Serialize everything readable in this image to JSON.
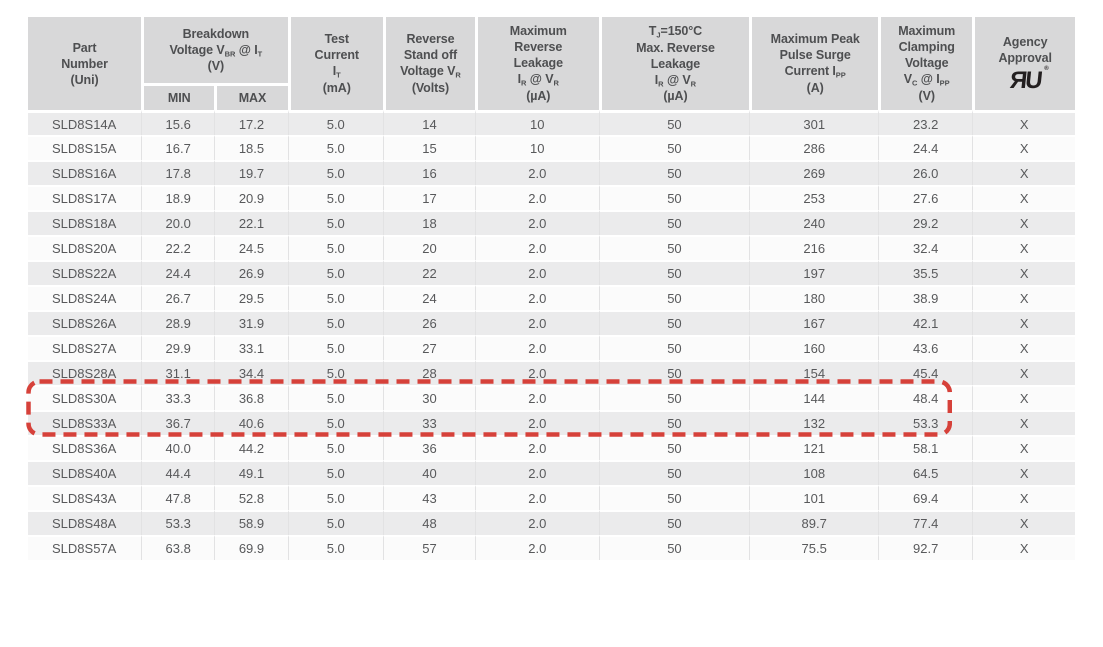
{
  "accent_colors": {
    "highlight_box": "#d6413a",
    "header_bg": "#d8d8d9",
    "stripe_bg": "#ebebec",
    "header_text": "#4e4f51",
    "body_text": "#58595b"
  },
  "agency_logo": {
    "glyph": "ЯU",
    "reg_mark": "®",
    "name": "ul-recognized-component-mark"
  },
  "table": {
    "columns": [
      {
        "id": "part-number",
        "lines": [
          "Part",
          "Number",
          "(Uni)"
        ]
      },
      {
        "id": "breakdown-voltage",
        "lines": [
          "Breakdown",
          "Voltage V~BR~ @ I~T~",
          "(V)"
        ],
        "split": true
      },
      {
        "id": "test-current",
        "lines": [
          "Test",
          "Current",
          "I~T~",
          "(mA)"
        ]
      },
      {
        "id": "reverse-standoff-voltage",
        "lines": [
          "Reverse",
          "Stand off",
          "Voltage V~R~",
          "(Volts)"
        ]
      },
      {
        "id": "max-reverse-leakage",
        "lines": [
          "Maximum",
          "Reverse",
          "Leakage",
          "I~R~ @ V~R~",
          "(µA)"
        ]
      },
      {
        "id": "tj150-max-reverse-leakage",
        "lines": [
          "T~J~=150°C",
          "Max. Reverse",
          "Leakage",
          "I~R~ @ V~R~",
          "(µA)"
        ]
      },
      {
        "id": "max-peak-pulse-surge-current",
        "lines": [
          "Maximum Peak",
          "Pulse Surge",
          "Current I~PP~",
          "(A)"
        ]
      },
      {
        "id": "max-clamping-voltage",
        "lines": [
          "Maximum",
          "Clamping",
          "Voltage",
          "V~C~ @ I~PP~",
          "(V)"
        ]
      },
      {
        "id": "agency-approval",
        "lines": [
          "Agency",
          "Approval"
        ],
        "logo": true
      }
    ],
    "column_widths_pct": [
      10.8,
      7.0,
      7.0,
      9.1,
      8.8,
      11.8,
      14.4,
      12.3,
      9.0,
      9.8
    ],
    "sub_headers": [
      "MIN",
      "MAX"
    ],
    "rows": [
      {
        "cells": [
          "SLD8S14A",
          "15.6",
          "17.2",
          "5.0",
          "14",
          "10",
          "50",
          "301",
          "23.2",
          "X"
        ],
        "highlight": false
      },
      {
        "cells": [
          "SLD8S15A",
          "16.7",
          "18.5",
          "5.0",
          "15",
          "10",
          "50",
          "286",
          "24.4",
          "X"
        ],
        "highlight": false
      },
      {
        "cells": [
          "SLD8S16A",
          "17.8",
          "19.7",
          "5.0",
          "16",
          "2.0",
          "50",
          "269",
          "26.0",
          "X"
        ],
        "highlight": false
      },
      {
        "cells": [
          "SLD8S17A",
          "18.9",
          "20.9",
          "5.0",
          "17",
          "2.0",
          "50",
          "253",
          "27.6",
          "X"
        ],
        "highlight": false
      },
      {
        "cells": [
          "SLD8S18A",
          "20.0",
          "22.1",
          "5.0",
          "18",
          "2.0",
          "50",
          "240",
          "29.2",
          "X"
        ],
        "highlight": false
      },
      {
        "cells": [
          "SLD8S20A",
          "22.2",
          "24.5",
          "5.0",
          "20",
          "2.0",
          "50",
          "216",
          "32.4",
          "X"
        ],
        "highlight": false
      },
      {
        "cells": [
          "SLD8S22A",
          "24.4",
          "26.9",
          "5.0",
          "22",
          "2.0",
          "50",
          "197",
          "35.5",
          "X"
        ],
        "highlight": false
      },
      {
        "cells": [
          "SLD8S24A",
          "26.7",
          "29.5",
          "5.0",
          "24",
          "2.0",
          "50",
          "180",
          "38.9",
          "X"
        ],
        "highlight": false
      },
      {
        "cells": [
          "SLD8S26A",
          "28.9",
          "31.9",
          "5.0",
          "26",
          "2.0",
          "50",
          "167",
          "42.1",
          "X"
        ],
        "highlight": false
      },
      {
        "cells": [
          "SLD8S27A",
          "29.9",
          "33.1",
          "5.0",
          "27",
          "2.0",
          "50",
          "160",
          "43.6",
          "X"
        ],
        "highlight": false
      },
      {
        "cells": [
          "SLD8S28A",
          "31.1",
          "34.4",
          "5.0",
          "28",
          "2.0",
          "50",
          "154",
          "45.4",
          "X"
        ],
        "highlight": false
      },
      {
        "cells": [
          "SLD8S30A",
          "33.3",
          "36.8",
          "5.0",
          "30",
          "2.0",
          "50",
          "144",
          "48.4",
          "X"
        ],
        "highlight": true
      },
      {
        "cells": [
          "SLD8S33A",
          "36.7",
          "40.6",
          "5.0",
          "33",
          "2.0",
          "50",
          "132",
          "53.3",
          "X"
        ],
        "highlight": true
      },
      {
        "cells": [
          "SLD8S36A",
          "40.0",
          "44.2",
          "5.0",
          "36",
          "2.0",
          "50",
          "121",
          "58.1",
          "X"
        ],
        "highlight": false
      },
      {
        "cells": [
          "SLD8S40A",
          "44.4",
          "49.1",
          "5.0",
          "40",
          "2.0",
          "50",
          "108",
          "64.5",
          "X"
        ],
        "highlight": false
      },
      {
        "cells": [
          "SLD8S43A",
          "47.8",
          "52.8",
          "5.0",
          "43",
          "2.0",
          "50",
          "101",
          "69.4",
          "X"
        ],
        "highlight": false
      },
      {
        "cells": [
          "SLD8S48A",
          "53.3",
          "58.9",
          "5.0",
          "48",
          "2.0",
          "50",
          "89.7",
          "77.4",
          "X"
        ],
        "highlight": false
      },
      {
        "cells": [
          "SLD8S57A",
          "63.8",
          "69.9",
          "5.0",
          "57",
          "2.0",
          "50",
          "75.5",
          "92.7",
          "X"
        ],
        "highlight": false
      }
    ]
  }
}
